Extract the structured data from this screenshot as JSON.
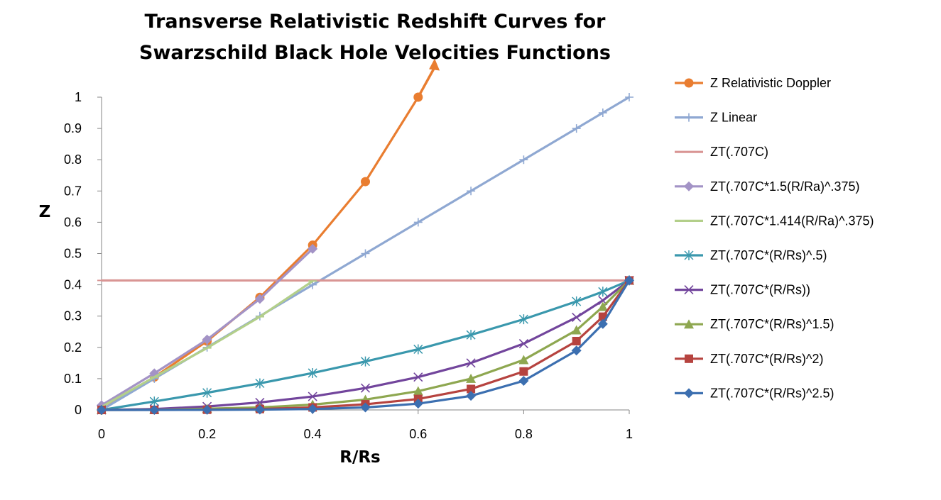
{
  "chart_data": {
    "type": "line",
    "title": [
      "Transverse Relativistic Redshift Curves for",
      "Swarzschild Black Hole Velocities Functions"
    ],
    "xlabel": "R/Rs",
    "ylabel": "Z",
    "xlim": [
      0,
      1
    ],
    "ylim": [
      0,
      1
    ],
    "x_ticks": [
      0,
      0.2,
      0.4,
      0.6,
      0.8,
      1
    ],
    "x_tick_labels": [
      "0",
      "0.2",
      "0.4",
      "0.6",
      "0.8",
      "1"
    ],
    "y_ticks": [
      0,
      0.1,
      0.2,
      0.3,
      0.4,
      0.5,
      0.6,
      0.7,
      0.8,
      0.9,
      1
    ],
    "y_tick_labels": [
      "0",
      "0.1",
      "0.2",
      "0.3",
      "0.4",
      "0.5",
      "0.6",
      "0.7",
      "0.8",
      "0.9",
      "1"
    ],
    "grid": false,
    "legend_position": "right",
    "annotation": {
      "type": "arrow",
      "color": "#e97d30",
      "from": [
        0.6,
        1.0
      ],
      "to": [
        0.63,
        1.11
      ]
    },
    "series": [
      {
        "name": "Z Relativistic Doppler",
        "color": "#e97d30",
        "marker": "circle",
        "x": [
          0,
          0.1,
          0.2,
          0.3,
          0.4,
          0.5,
          0.6
        ],
        "y": [
          0,
          0.105,
          0.22,
          0.36,
          0.527,
          0.73,
          1.0
        ]
      },
      {
        "name": "Z Linear",
        "color": "#8fa8d2",
        "marker": "plus",
        "x": [
          0,
          0.1,
          0.2,
          0.3,
          0.4,
          0.5,
          0.6,
          0.7,
          0.8,
          0.9,
          0.95,
          1
        ],
        "y": [
          0,
          0.1,
          0.2,
          0.3,
          0.4,
          0.5,
          0.6,
          0.7,
          0.8,
          0.9,
          0.95,
          1
        ]
      },
      {
        "name": "ZT(.707C)",
        "color": "#d99594",
        "marker": "dash",
        "x": [
          0,
          0.1,
          0.2,
          0.3,
          0.4,
          0.5,
          0.6,
          0.7,
          0.8,
          0.9,
          0.95,
          1
        ],
        "y": [
          0.414,
          0.414,
          0.414,
          0.414,
          0.414,
          0.414,
          0.414,
          0.414,
          0.414,
          0.414,
          0.414,
          0.414
        ]
      },
      {
        "name": "ZT(.707C*1.5(R/Ra)^.375)",
        "color": "#a393c6",
        "marker": "diamond",
        "x": [
          0,
          0.1,
          0.2,
          0.3,
          0.4
        ],
        "y": [
          0.015,
          0.117,
          0.225,
          0.355,
          0.515
        ]
      },
      {
        "name": "ZT(.707C*1.414(R/Ra)^.375)",
        "color": "#b3cf8a",
        "marker": "dash",
        "x": [
          0,
          0.1,
          0.2,
          0.3,
          0.4
        ],
        "y": [
          0.01,
          0.105,
          0.198,
          0.298,
          0.412
        ]
      },
      {
        "name": "ZT(.707C*(R/Rs)^.5)",
        "color": "#3a98ad",
        "marker": "star",
        "x": [
          0,
          0.1,
          0.2,
          0.3,
          0.4,
          0.5,
          0.6,
          0.7,
          0.8,
          0.9,
          0.95,
          1
        ],
        "y": [
          0,
          0.027,
          0.055,
          0.085,
          0.118,
          0.155,
          0.194,
          0.24,
          0.29,
          0.347,
          0.378,
          0.414
        ]
      },
      {
        "name": "ZT(.707C*(R/Rs))",
        "color": "#72459c",
        "marker": "x",
        "x": [
          0,
          0.1,
          0.2,
          0.3,
          0.4,
          0.5,
          0.6,
          0.7,
          0.8,
          0.9,
          0.95,
          1
        ],
        "y": [
          0,
          0.003,
          0.011,
          0.024,
          0.043,
          0.07,
          0.105,
          0.15,
          0.212,
          0.296,
          0.35,
          0.414
        ]
      },
      {
        "name": "ZT(.707C*(R/Rs)^1.5)",
        "color": "#8ea750",
        "marker": "triangle",
        "x": [
          0,
          0.1,
          0.2,
          0.3,
          0.4,
          0.5,
          0.6,
          0.7,
          0.8,
          0.9,
          0.95,
          1
        ],
        "y": [
          0,
          0.0003,
          0.004,
          0.008,
          0.017,
          0.033,
          0.06,
          0.1,
          0.16,
          0.255,
          0.33,
          0.414
        ]
      },
      {
        "name": "ZT(.707C*(R/Rs)^2)",
        "color": "#b6433f",
        "marker": "square",
        "x": [
          0,
          0.1,
          0.2,
          0.3,
          0.4,
          0.5,
          0.6,
          0.7,
          0.8,
          0.9,
          0.95,
          1
        ],
        "y": [
          0,
          0.0001,
          0.0007,
          0.003,
          0.008,
          0.018,
          0.035,
          0.067,
          0.123,
          0.22,
          0.298,
          0.414
        ]
      },
      {
        "name": "ZT(.707C*(R/Rs)^2.5)",
        "color": "#3c6fb0",
        "marker": "diamond",
        "x": [
          0,
          0.1,
          0.2,
          0.3,
          0.4,
          0.5,
          0.6,
          0.7,
          0.8,
          0.9,
          0.95,
          1
        ],
        "y": [
          0,
          0,
          0.0003,
          0.001,
          0.003,
          0.008,
          0.02,
          0.045,
          0.093,
          0.19,
          0.275,
          0.414
        ]
      }
    ]
  }
}
